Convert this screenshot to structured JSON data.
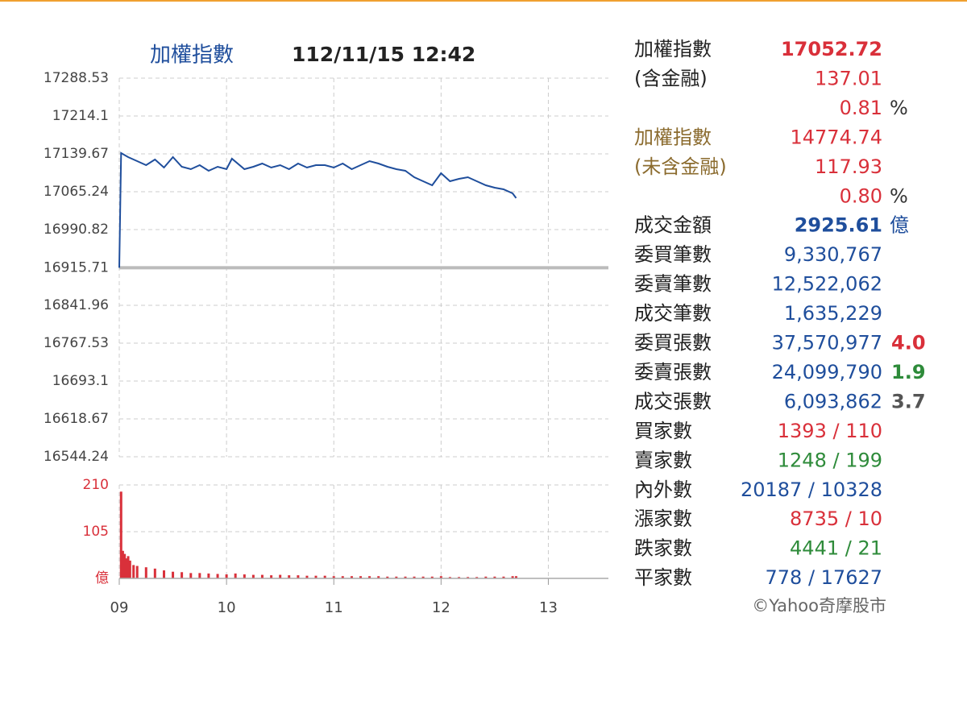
{
  "chart_data": [
    {
      "type": "line",
      "title": "加權指數",
      "subtitle": "112/11/15 12:42",
      "color": "#1f4e9c",
      "x": [
        9,
        9.017,
        9.083,
        9.167,
        9.25,
        9.333,
        9.417,
        9.5,
        9.583,
        9.667,
        9.75,
        9.833,
        9.917,
        10,
        10.05,
        10.167,
        10.25,
        10.333,
        10.417,
        10.5,
        10.583,
        10.667,
        10.75,
        10.833,
        10.917,
        11,
        11.083,
        11.167,
        11.25,
        11.333,
        11.417,
        11.5,
        11.583,
        11.667,
        11.75,
        11.833,
        11.917,
        12,
        12.083,
        12.167,
        12.25,
        12.333,
        12.417,
        12.5,
        12.583,
        12.667,
        12.7
      ],
      "values": [
        16915.71,
        17141.26,
        17133.3,
        17125.4,
        17117.5,
        17128.6,
        17112.7,
        17133.3,
        17114.3,
        17109.6,
        17117.5,
        17106.4,
        17114.3,
        17109.6,
        17130.1,
        17109.6,
        17114.3,
        17120.7,
        17112.7,
        17117.5,
        17109.6,
        17120.7,
        17112.7,
        17117.5,
        17117.5,
        17112.7,
        17120.7,
        17109.6,
        17117.5,
        17125.4,
        17120.7,
        17114.3,
        17109.6,
        17106.4,
        17093.7,
        17085.8,
        17077.9,
        17101.7,
        17085.8,
        17090.6,
        17093.7,
        17085.8,
        17077.9,
        17073.1,
        17070.0,
        17062.1,
        17052.72
      ],
      "reference": 16915.71,
      "reference_color": "#bbbbbb",
      "xlim": [
        9,
        13.56
      ],
      "xticks": [
        9,
        10,
        11,
        12,
        13
      ],
      "ylim": [
        16544.24,
        17288.53
      ],
      "yticks": [
        16544.24,
        16618.67,
        16693.1,
        16767.53,
        16841.96,
        16915.71,
        16990.82,
        17065.24,
        17139.67,
        17214.1,
        17288.53
      ],
      "grid": true
    },
    {
      "type": "bar",
      "color": "#d9303a",
      "x": [
        9.017,
        9.033,
        9.05,
        9.067,
        9.083,
        9.1,
        9.133,
        9.167,
        9.25,
        9.333,
        9.417,
        9.5,
        9.583,
        9.667,
        9.75,
        9.833,
        9.917,
        10,
        10.083,
        10.167,
        10.25,
        10.333,
        10.417,
        10.5,
        10.583,
        10.667,
        10.75,
        10.833,
        10.917,
        11,
        11.083,
        11.167,
        11.25,
        11.333,
        11.417,
        11.5,
        11.583,
        11.667,
        11.75,
        11.833,
        11.917,
        12,
        12.083,
        12.167,
        12.25,
        12.333,
        12.417,
        12.5,
        12.583,
        12.667,
        12.7
      ],
      "values": [
        195,
        62,
        55,
        45,
        50,
        40,
        30,
        28,
        25,
        22,
        18,
        15,
        14,
        12,
        12,
        11,
        10,
        9,
        11,
        9,
        8,
        8,
        7,
        8,
        7,
        7,
        6,
        6,
        6,
        5,
        5,
        5,
        5,
        5,
        5,
        4,
        4,
        4,
        4,
        4,
        4,
        5,
        3,
        3,
        3,
        3,
        4,
        4,
        4,
        5,
        5
      ],
      "xlim": [
        9,
        13.56
      ],
      "xticks": [
        {
          "value": 9,
          "label": "09"
        },
        10,
        11,
        12,
        13
      ],
      "ylim": [
        0,
        210
      ],
      "yticks": [
        {
          "value": 0,
          "label": "億"
        },
        105,
        210
      ],
      "grid": true
    }
  ],
  "stats": {
    "rows": [
      {
        "label": "加權指數",
        "value": "17052.72",
        "color": "#d9303a",
        "bold": true
      },
      {
        "label": "(含金融)",
        "value": "137.01",
        "color": "#d9303a"
      },
      {
        "value": "0.81",
        "unit": "%",
        "color": "#d9303a"
      },
      {
        "label": "加權指數",
        "label_color": "#8b6b2e",
        "value": "14774.74",
        "color": "#d9303a"
      },
      {
        "label": "(未含金融)",
        "label_color": "#8b6b2e",
        "value": "117.93",
        "color": "#d9303a"
      },
      {
        "value": "0.80",
        "unit": "%",
        "color": "#d9303a"
      },
      {
        "label": "成交金額",
        "value": "2925.61",
        "unit": "億",
        "unit_color": "#1f4e9c",
        "color": "#1f4e9c",
        "bold": true
      },
      {
        "label": "委買筆數",
        "value": "9,330,767",
        "color": "#1f4e9c"
      },
      {
        "label": "委賣筆數",
        "value": "12,522,062",
        "color": "#1f4e9c"
      },
      {
        "label": "成交筆數",
        "value": "1,635,229",
        "color": "#1f4e9c"
      },
      {
        "label": "委買張數",
        "value": "37,570,977",
        "color": "#1f4e9c",
        "extra": "4.0",
        "extra_color": "#d9303a"
      },
      {
        "label": "委賣張數",
        "value": "24,099,790",
        "color": "#1f4e9c",
        "extra": "1.9",
        "extra_color": "#2e8b3a"
      },
      {
        "label": "成交張數",
        "value": "6,093,862",
        "color": "#1f4e9c",
        "extra": "3.7",
        "extra_color": "#555555"
      },
      {
        "label": "買家數",
        "value": "1393 / 110",
        "color": "#d9303a"
      },
      {
        "label": "賣家數",
        "value": "1248 / 199",
        "color": "#2e8b3a"
      },
      {
        "label": "內外數",
        "value": "20187 / 10328",
        "color": "#1f4e9c"
      },
      {
        "label": "漲家數",
        "value": "8735 / 10",
        "color": "#d9303a"
      },
      {
        "label": "跌家數",
        "value": "4441 / 21",
        "color": "#2e8b3a"
      },
      {
        "label": "平家數",
        "value": "778 / 17627",
        "color": "#1f4e9c"
      }
    ],
    "footer": "©Yahoo奇摩股市"
  }
}
